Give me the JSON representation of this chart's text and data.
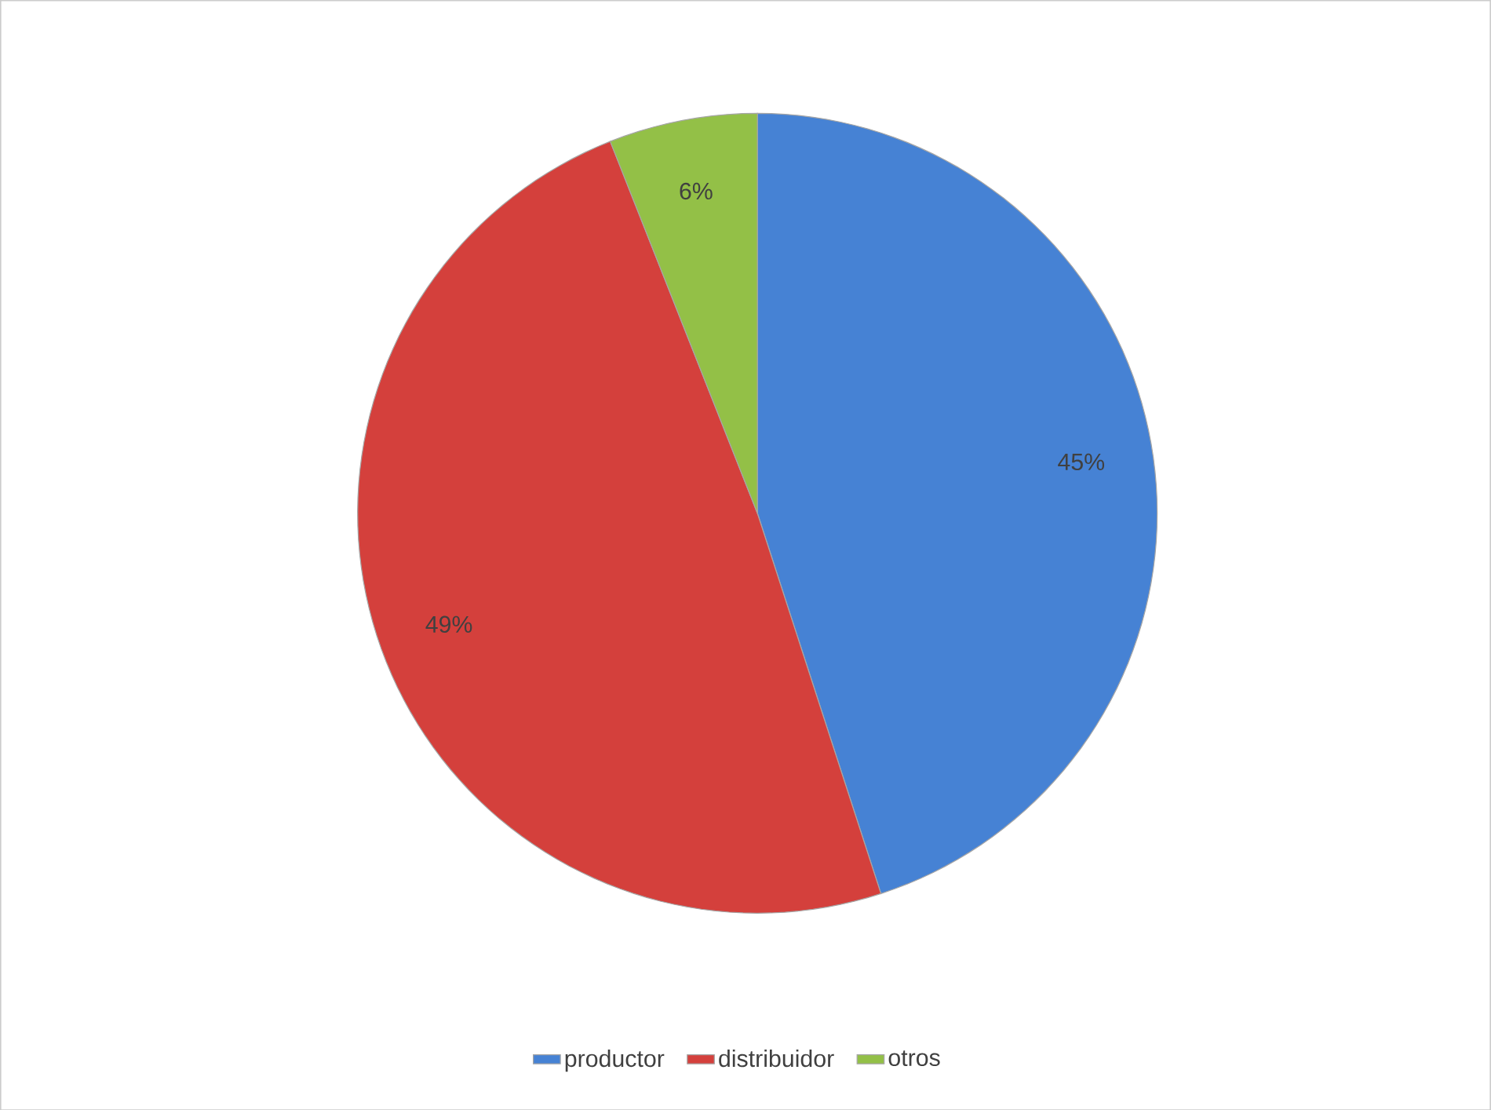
{
  "chart_data": {
    "type": "pie",
    "categories": [
      "productor",
      "distribuidor",
      "otros"
    ],
    "values": [
      45,
      49,
      6
    ],
    "value_labels": [
      "45%",
      "49%",
      "6%"
    ],
    "colors": [
      "#4682d4",
      "#d4403c",
      "#93c047"
    ],
    "legend": "bottom"
  }
}
